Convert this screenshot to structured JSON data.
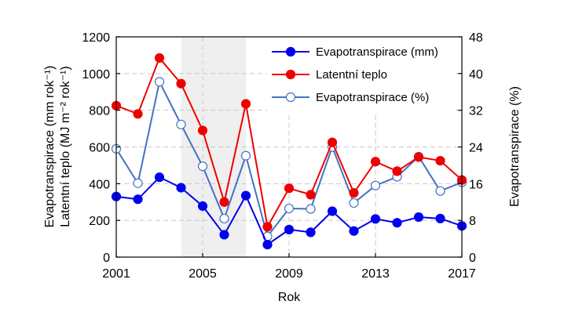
{
  "chart_data": {
    "type": "line",
    "x": [
      2001,
      2002,
      2003,
      2004,
      2005,
      2006,
      2007,
      2008,
      2009,
      2010,
      2011,
      2012,
      2013,
      2014,
      2015,
      2016,
      2017
    ],
    "xlabel": "Rok",
    "xlim": [
      2001,
      2017
    ],
    "xticks": [
      2001,
      2005,
      2009,
      2013,
      2017
    ],
    "ylabel_left_line1": "Evapotranspirace (mm rok⁻¹)",
    "ylabel_left_line2": "Latentní teplo (MJ m⁻² rok⁻¹)",
    "ylim_left": [
      0,
      1200
    ],
    "yticks_left": [
      0,
      200,
      400,
      600,
      800,
      1000,
      1200
    ],
    "ylabel_right": "Evapotranspirace (%)",
    "ylim_right": [
      0,
      48
    ],
    "yticks_right": [
      0,
      8,
      16,
      24,
      32,
      40,
      48
    ],
    "grid": true,
    "shaded_period": [
      2004,
      2007
    ],
    "legend_position": "top-right",
    "series": [
      {
        "name": "Evapotranspirace (mm)",
        "axis": "left",
        "color": "#0000ee",
        "marker": "filled-circle",
        "values": [
          330,
          315,
          435,
          378,
          278,
          122,
          335,
          68,
          150,
          135,
          250,
          142,
          208,
          187,
          218,
          210,
          170
        ]
      },
      {
        "name": "Latentní teplo",
        "axis": "left",
        "color": "#ee0000",
        "marker": "filled-circle",
        "values": [
          825,
          780,
          1085,
          945,
          690,
          300,
          835,
          165,
          375,
          340,
          625,
          350,
          520,
          468,
          545,
          525,
          420
        ]
      },
      {
        "name": "Evapotranspirace (%)",
        "axis": "right",
        "color": "#4472c4",
        "marker": "open-circle",
        "values": [
          23.6,
          16.1,
          38.2,
          28.9,
          19.8,
          8.4,
          22.1,
          4.5,
          10.6,
          10.5,
          24.0,
          11.8,
          15.6,
          17.5,
          21.9,
          14.4,
          16.3
        ]
      }
    ]
  }
}
